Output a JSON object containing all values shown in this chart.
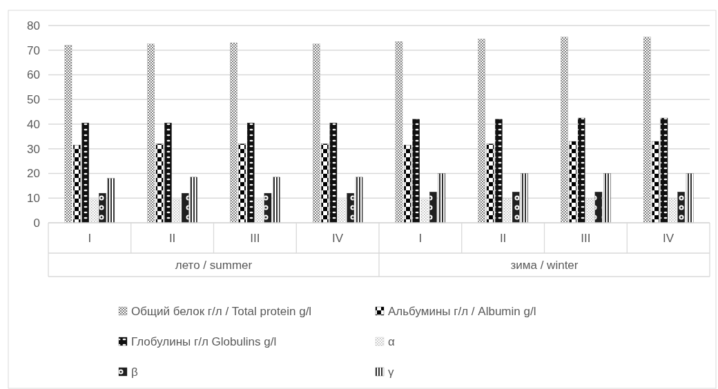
{
  "chart_data": {
    "type": "bar",
    "categories": [
      "I",
      "II",
      "III",
      "IV",
      "I",
      "II",
      "III",
      "IV"
    ],
    "annotations": [
      "лето / summer",
      "зима / winter"
    ],
    "series": [
      {
        "name": "Общий белок г/л / Total protein g/l",
        "color": "#808080",
        "values": [
          72,
          72.5,
          73,
          72.5,
          73.5,
          74.5,
          75.3,
          75.3
        ]
      },
      {
        "name": "Альбумины г/л / Albumin g/l",
        "color": "#000000",
        "values": [
          31.5,
          32,
          32,
          32,
          31.5,
          32,
          33,
          33
        ]
      },
      {
        "name": "Глобулины г/л Globulins g/l",
        "color": "#101010",
        "values": [
          40.5,
          40.5,
          40.5,
          40.5,
          42,
          42,
          42.5,
          42.5
        ]
      },
      {
        "name": "α",
        "color": "#b0b0b0",
        "values": [
          9.5,
          9.5,
          9.5,
          9.5,
          9.5,
          10,
          10,
          10
        ]
      },
      {
        "name": "β",
        "color": "#202020",
        "values": [
          12,
          12,
          12,
          12,
          12.5,
          12.5,
          12.5,
          12.5
        ]
      },
      {
        "name": "γ",
        "color": "#303030",
        "values": [
          18,
          18.5,
          18.5,
          18.5,
          20,
          20,
          20,
          20
        ]
      }
    ],
    "ylim": [
      0,
      80
    ],
    "yticks": [
      0,
      10,
      20,
      30,
      40,
      50,
      60,
      70,
      80
    ],
    "grid": "y",
    "legend": "bottom"
  }
}
